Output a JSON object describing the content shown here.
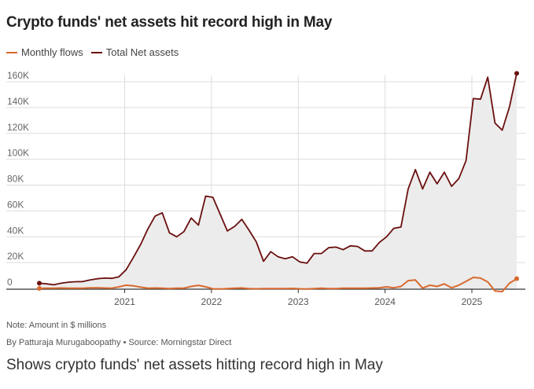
{
  "title": "Crypto funds' net assets hit record high in May",
  "legend": {
    "flows_label": "Monthly flows",
    "assets_label": "Total Net assets"
  },
  "colors": {
    "flows": "#d86a2f",
    "assets": "#6b0f0f",
    "area_fill": "#ececec",
    "grid": "#dcdcdc",
    "axis": "#333333"
  },
  "note": "Note: Amount in $ millions",
  "byline": "By Patturaja Murugaboopathy",
  "source": "Source: Morningstar Direct",
  "caption": "Shows crypto funds' net assets hitting record high in May",
  "chart_data": {
    "type": "line",
    "x_start": "2020-01",
    "x_labels": [
      "2021",
      "2022",
      "2023",
      "2024",
      "2025"
    ],
    "y_ticks": [
      "0",
      "20K",
      "40K",
      "60K",
      "80K",
      "100K",
      "120K",
      "140K",
      "160K"
    ],
    "ylim": [
      0,
      160000
    ],
    "grid": "horizontal",
    "legend_position": "top-left",
    "series": [
      {
        "name": "Total Net assets",
        "fill": "area",
        "values": [
          4000,
          3500,
          2800,
          4000,
          4800,
          5200,
          5300,
          6500,
          7500,
          8000,
          7800,
          9000,
          14500,
          24000,
          34000,
          46000,
          56000,
          58500,
          43000,
          40000,
          44000,
          54500,
          49000,
          71500,
          70500,
          57500,
          44500,
          48000,
          53500,
          45000,
          36000,
          21000,
          28500,
          24500,
          23000,
          24500,
          20500,
          19500,
          27000,
          27000,
          31500,
          32000,
          30000,
          33000,
          32500,
          29000,
          29000,
          35500,
          40000,
          46500,
          47500,
          77000,
          92000,
          77000,
          90000,
          81000,
          90000,
          79000,
          85000,
          99000,
          147000,
          146500,
          163500,
          128000,
          122500,
          140500,
          166500
        ]
      },
      {
        "name": "Monthly flows",
        "fill": "none",
        "values": [
          0,
          100,
          200,
          300,
          200,
          100,
          200,
          400,
          500,
          300,
          200,
          1200,
          2500,
          2000,
          1000,
          200,
          300,
          200,
          -100,
          200,
          200,
          1500,
          2400,
          1200,
          -300,
          -400,
          -200,
          100,
          300,
          -200,
          -300,
          -200,
          -100,
          -200,
          -100,
          0,
          -300,
          -400,
          -200,
          100,
          -100,
          -200,
          100,
          200,
          100,
          200,
          300,
          500,
          1200,
          500,
          1500,
          6000,
          6500,
          200,
          2500,
          1500,
          3500,
          500,
          2500,
          5500,
          8500,
          8000,
          5000,
          -2000,
          -2500,
          4000,
          7500
        ]
      }
    ]
  }
}
